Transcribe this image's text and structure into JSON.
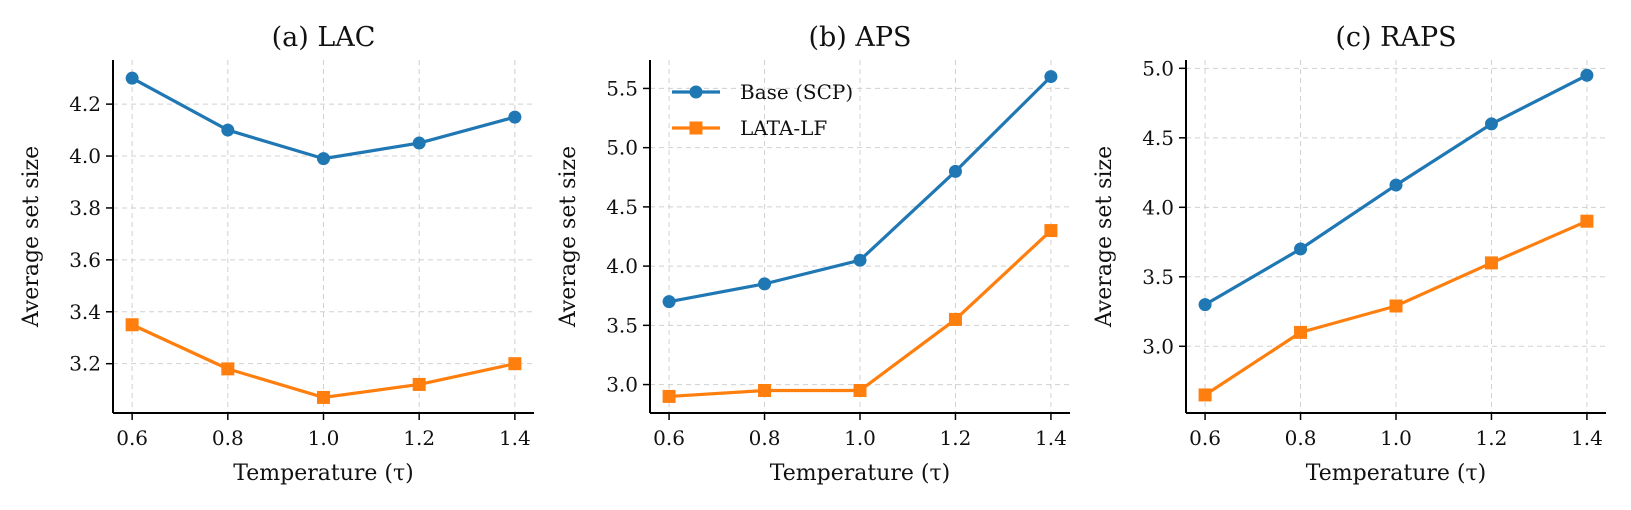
{
  "colors": {
    "base": "#1f77b4",
    "lata": "#ff7f0e"
  },
  "chart_data": [
    {
      "type": "line",
      "title": "(a) LAC",
      "xlabel": "Temperature (τ)",
      "ylabel": "Average set size",
      "x": [
        0.6,
        0.8,
        1.0,
        1.2,
        1.4
      ],
      "xticks": [
        "0.6",
        "0.8",
        "1.0",
        "1.2",
        "1.4"
      ],
      "xlim": [
        0.56,
        1.44
      ],
      "ylim": [
        3.01,
        4.37
      ],
      "yticks": [
        "3.2",
        "3.4",
        "3.6",
        "3.8",
        "4.0",
        "4.2"
      ],
      "grid": true,
      "series": [
        {
          "name": "Base (SCP)",
          "marker": "circle",
          "values": [
            4.3,
            4.1,
            3.99,
            4.05,
            4.15
          ]
        },
        {
          "name": "LATA-LF",
          "marker": "square",
          "values": [
            3.35,
            3.18,
            3.07,
            3.12,
            3.2
          ]
        }
      ]
    },
    {
      "type": "line",
      "title": "(b) APS",
      "xlabel": "Temperature (τ)",
      "ylabel": "Average set size",
      "x": [
        0.6,
        0.8,
        1.0,
        1.2,
        1.4
      ],
      "xticks": [
        "0.6",
        "0.8",
        "1.0",
        "1.2",
        "1.4"
      ],
      "xlim": [
        0.56,
        1.44
      ],
      "ylim": [
        2.76,
        5.74
      ],
      "yticks": [
        "3.0",
        "3.5",
        "4.0",
        "4.5",
        "5.0",
        "5.5"
      ],
      "grid": true,
      "legend": "top-left",
      "series": [
        {
          "name": "Base (SCP)",
          "marker": "circle",
          "values": [
            3.7,
            3.85,
            4.05,
            4.8,
            5.6
          ]
        },
        {
          "name": "LATA-LF",
          "marker": "square",
          "values": [
            2.9,
            2.95,
            2.95,
            3.55,
            4.3
          ]
        }
      ]
    },
    {
      "type": "line",
      "title": "(c) RAPS",
      "xlabel": "Temperature (τ)",
      "ylabel": "Average set size",
      "x": [
        0.6,
        0.8,
        1.0,
        1.2,
        1.4
      ],
      "xticks": [
        "0.6",
        "0.8",
        "1.0",
        "1.2",
        "1.4"
      ],
      "xlim": [
        0.56,
        1.44
      ],
      "ylim": [
        2.52,
        5.06
      ],
      "yticks": [
        "3.0",
        "3.5",
        "4.0",
        "4.5",
        "5.0"
      ],
      "grid": true,
      "series": [
        {
          "name": "Base (SCP)",
          "marker": "circle",
          "values": [
            3.3,
            3.7,
            4.16,
            4.6,
            4.95
          ]
        },
        {
          "name": "LATA-LF",
          "marker": "square",
          "values": [
            2.65,
            3.1,
            3.29,
            3.6,
            3.9
          ]
        }
      ]
    }
  ]
}
